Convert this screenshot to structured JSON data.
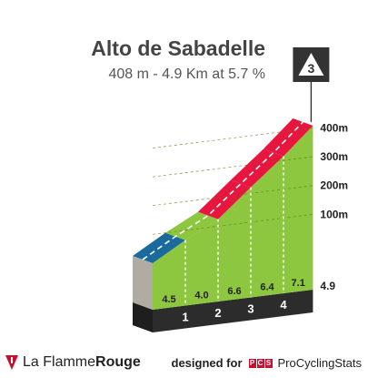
{
  "title": "Alto de Sabadelle",
  "subtitle": "408 m - 4.9 Km at 5.7 %",
  "category_badge": "3",
  "footer": {
    "brand_la": "La Flamme",
    "brand_rouge": "Rouge",
    "designed_by": "designed for",
    "pcs_badge": [
      "P",
      "C",
      "S"
    ],
    "pcs_name": "ProCyclingStats"
  },
  "colors": {
    "grade_4_5": "#8dc63f",
    "grade_6_7": "#e8163e",
    "first_segment": "#1a6b9c",
    "side_wall": "#b0aba3",
    "base_bar": "#2c2c2c",
    "badge": "#333333"
  },
  "chart_data": {
    "type": "area",
    "title": "Alto de Sabadelle",
    "xlabel": "",
    "ylabel": "",
    "x_unit": "km",
    "y_unit": "m",
    "total_distance_km": 4.9,
    "ylim": [
      0,
      408
    ],
    "y_ticks": [
      {
        "value": 100,
        "label": "100m"
      },
      {
        "value": 200,
        "label": "200m"
      },
      {
        "value": 300,
        "label": "300m"
      },
      {
        "value": 400,
        "label": "400m"
      }
    ],
    "km_markers": [
      "1",
      "2",
      "3",
      "4"
    ],
    "segments": [
      {
        "x_start": 0,
        "x_end": 1,
        "gradient": 4.5,
        "label": "4.5"
      },
      {
        "x_start": 1,
        "x_end": 2,
        "gradient": 4.0,
        "label": "4.0"
      },
      {
        "x_start": 2,
        "x_end": 3,
        "gradient": 6.6,
        "label": "6.6"
      },
      {
        "x_start": 3,
        "x_end": 4,
        "gradient": 6.4,
        "label": "6.4"
      },
      {
        "x_start": 4,
        "x_end": 4.9,
        "gradient": 7.1,
        "label": "7.1"
      }
    ],
    "end_label": "4.9",
    "grid": true
  }
}
